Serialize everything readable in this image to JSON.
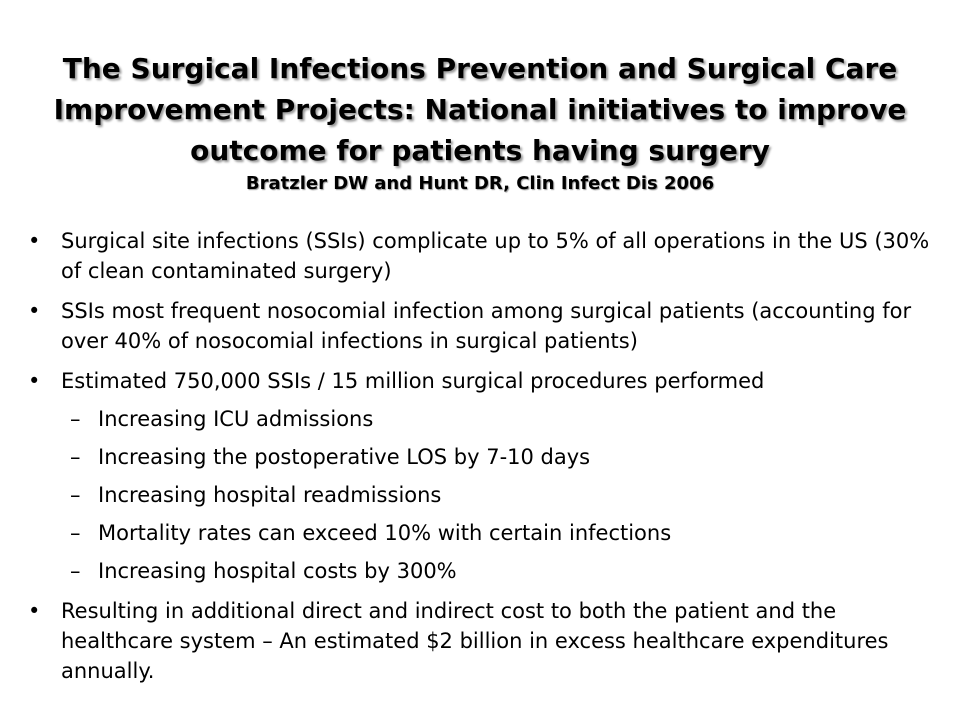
{
  "slide": {
    "title": "The Surgical Infections Prevention and Surgical Care Improvement Projects: National initiatives to improve outcome for patients having surgery",
    "citation": "Bratzler DW and Hunt DR, Clin Infect Dis 2006",
    "bullet_marker": "•",
    "sub_marker": "–",
    "bullets": [
      {
        "text": "Surgical site infections (SSIs) complicate up to 5% of all operations in the US (30% of clean contaminated surgery)"
      },
      {
        "text": "SSIs most frequent nosocomial infection among surgical patients (accounting for over 40% of nosocomial infections in surgical patients)"
      },
      {
        "text": "Estimated 750,000 SSIs / 15 million surgical procedures performed",
        "subitems": [
          "Increasing ICU admissions",
          "Increasing the postoperative LOS by 7-10 days",
          "Increasing hospital readmissions",
          "Mortality rates can exceed 10% with certain infections",
          "Increasing hospital costs by 300%"
        ]
      },
      {
        "text": "Resulting in additional direct and indirect cost to both the patient and the healthcare system – An estimated $2 billion in excess healthcare expenditures annually."
      }
    ]
  }
}
